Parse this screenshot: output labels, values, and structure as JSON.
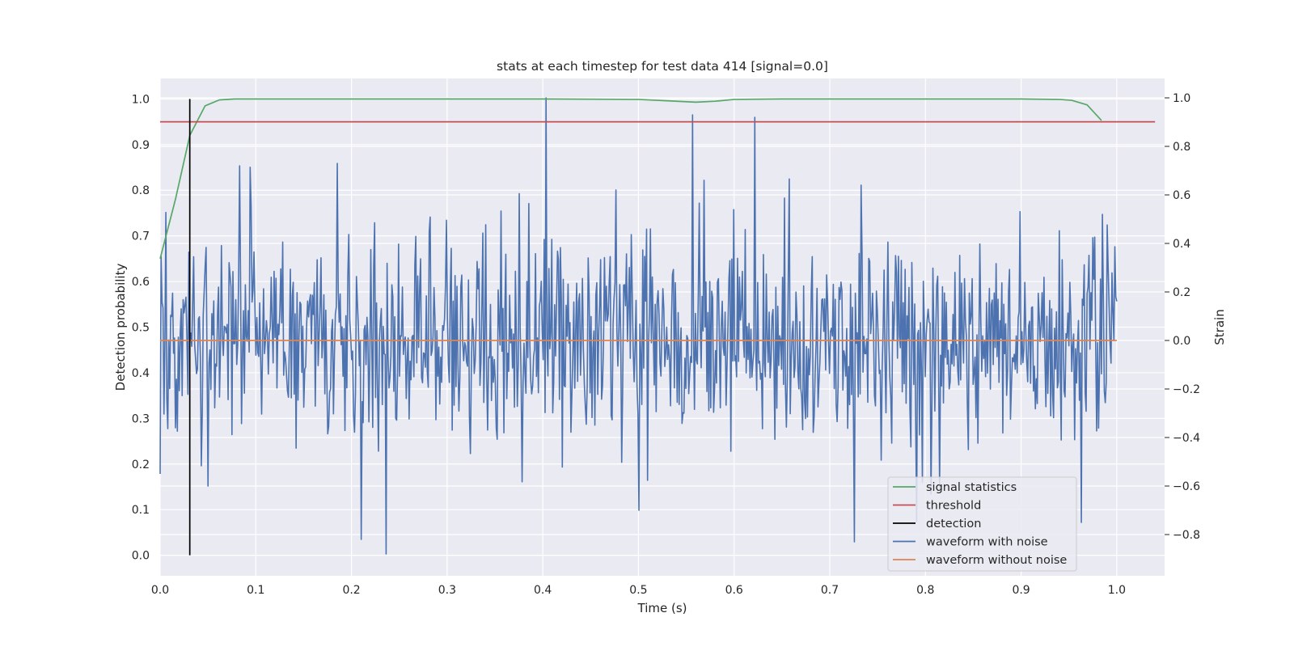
{
  "chart_data": {
    "type": "line",
    "title": "stats at each timestep for test data 414 [signal=0.0]",
    "xlabel": "Time (s)",
    "ylabel_left": "Detection probability",
    "ylabel_right": "Strain",
    "xlim": [
      0.0,
      1.05
    ],
    "ylim_left": [
      -0.045,
      1.045
    ],
    "ylim_right": [
      -0.97,
      1.08
    ],
    "x_ticks": [
      "0.0",
      "0.1",
      "0.2",
      "0.3",
      "0.4",
      "0.5",
      "0.6",
      "0.7",
      "0.8",
      "0.9",
      "1.0"
    ],
    "y_ticks_left": [
      "0.0",
      "0.1",
      "0.2",
      "0.3",
      "0.4",
      "0.5",
      "0.6",
      "0.7",
      "0.8",
      "0.9",
      "1.0"
    ],
    "y_ticks_right": [
      "−0.8",
      "−0.6",
      "−0.4",
      "−0.2",
      "0.0",
      "0.2",
      "0.4",
      "0.6",
      "0.8",
      "1.0"
    ],
    "grid": true,
    "legend_position": "lower right",
    "colors": {
      "background": "#eaeaf2",
      "grid": "#ffffff",
      "signal_statistics": "#55a868",
      "threshold": "#c44e52",
      "detection": "#000000",
      "waveform_with_noise": "#4c72b0",
      "waveform_without_noise": "#dd8452"
    },
    "series": [
      {
        "name": "signal statistics",
        "axis": "left",
        "x": [
          0.0,
          0.016,
          0.031,
          0.047,
          0.062,
          0.078,
          0.1,
          0.2,
          0.3,
          0.4,
          0.5,
          0.53,
          0.56,
          0.58,
          0.6,
          0.65,
          0.7,
          0.8,
          0.9,
          0.94,
          0.953,
          0.969,
          0.984
        ],
        "values": [
          0.65,
          0.78,
          0.92,
          0.985,
          0.998,
          1.0,
          1.0,
          1.0,
          1.0,
          1.0,
          0.999,
          0.996,
          0.993,
          0.995,
          0.999,
          1.0,
          1.0,
          1.0,
          1.0,
          0.999,
          0.997,
          0.987,
          0.953
        ]
      },
      {
        "name": "threshold",
        "axis": "left",
        "x": [
          0.0,
          1.04
        ],
        "values": [
          0.95,
          0.95
        ]
      },
      {
        "name": "detection",
        "axis": "left",
        "x": [
          0.031,
          0.031
        ],
        "values": [
          0.0,
          1.0
        ]
      },
      {
        "name": "waveform with noise",
        "axis": "right",
        "x_range": [
          0.0,
          1.0
        ],
        "noise": {
          "n": 1000,
          "seed": 414,
          "std": 0.22,
          "min": -0.88,
          "max": 1.0
        },
        "spikes": [
          {
            "x": 0.403,
            "value": 1.0
          },
          {
            "x": 0.557,
            "value": 0.93
          },
          {
            "x": 0.622,
            "value": 0.92
          },
          {
            "x": 0.185,
            "value": 0.73
          },
          {
            "x": 0.083,
            "value": 0.72
          },
          {
            "x": 0.236,
            "value": -0.88
          },
          {
            "x": 0.21,
            "value": -0.82
          },
          {
            "x": 0.5,
            "value": -0.7
          },
          {
            "x": 0.726,
            "value": -0.83
          },
          {
            "x": 0.963,
            "value": -0.75
          },
          {
            "x": 0.05,
            "value": -0.6
          },
          {
            "x": 0.0,
            "value": -0.55
          }
        ]
      },
      {
        "name": "waveform without noise",
        "axis": "right",
        "x": [
          0.0,
          1.0
        ],
        "values": [
          0.0,
          0.0
        ]
      }
    ],
    "legend": [
      {
        "label": "signal statistics",
        "series": "signal_statistics"
      },
      {
        "label": "threshold",
        "series": "threshold"
      },
      {
        "label": "detection",
        "series": "detection"
      },
      {
        "label": "waveform with noise",
        "series": "waveform_with_noise"
      },
      {
        "label": "waveform without noise",
        "series": "waveform_without_noise"
      }
    ]
  }
}
